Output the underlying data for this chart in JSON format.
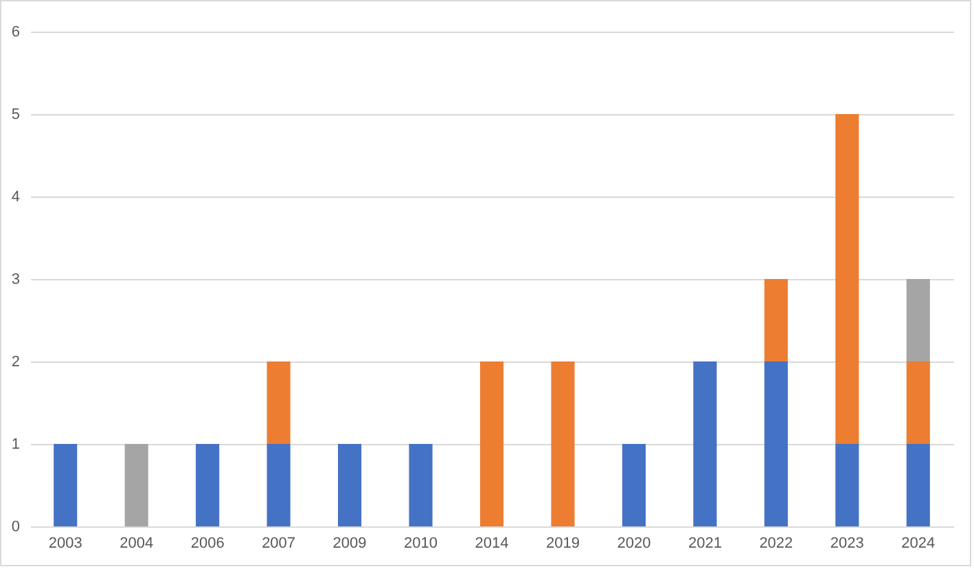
{
  "chart_data": {
    "type": "bar",
    "stacked": true,
    "categories": [
      "2003",
      "2004",
      "2006",
      "2007",
      "2009",
      "2010",
      "2014",
      "2019",
      "2020",
      "2021",
      "2022",
      "2023",
      "2024"
    ],
    "series": [
      {
        "color": "#4472c4",
        "values": [
          1,
          null,
          1,
          1,
          1,
          1,
          null,
          null,
          1,
          2,
          2,
          1,
          1
        ]
      },
      {
        "color": "#ed7d31",
        "values": [
          null,
          null,
          null,
          1,
          null,
          null,
          2,
          2,
          null,
          null,
          1,
          4,
          1
        ]
      },
      {
        "color": "#a5a5a5",
        "values": [
          null,
          1,
          null,
          null,
          null,
          null,
          null,
          null,
          null,
          null,
          null,
          null,
          1
        ]
      }
    ],
    "ylim": [
      0,
      6
    ],
    "yticks": [
      0,
      1,
      2,
      3,
      4,
      5,
      6
    ],
    "grid": "y"
  }
}
